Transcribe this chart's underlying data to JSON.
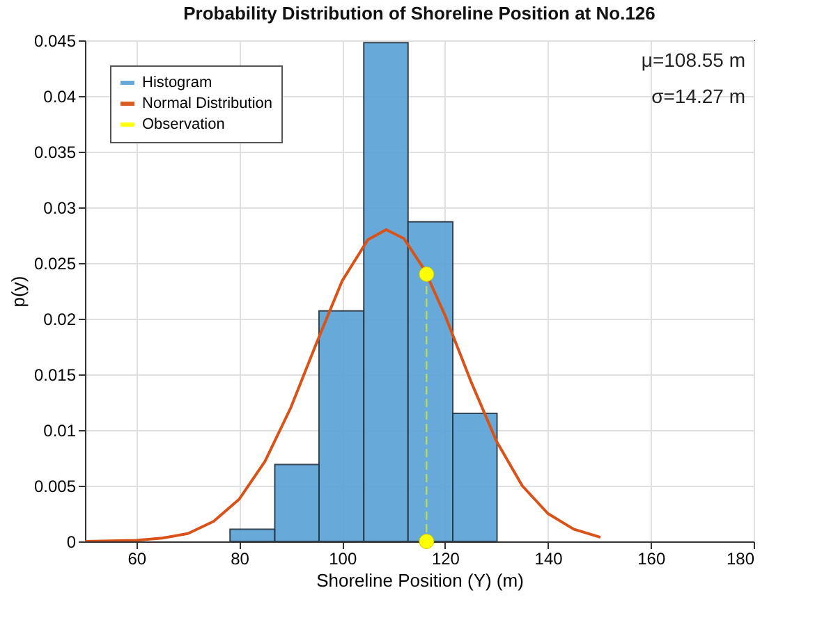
{
  "chart_data": {
    "type": "histogram",
    "title": "Probability Distribution of Shoreline Position at No.126",
    "xlabel": "Shoreline Position (Y) (m)",
    "ylabel": "p(y)",
    "series": [
      {
        "name": "Histogram",
        "type": "histogram",
        "color": "#5fa5d8",
        "bins": [
          78.2,
          86.9,
          95.5,
          104.2,
          112.8,
          121.5,
          130.1
        ],
        "values": [
          0.0011,
          0.0069,
          0.0207,
          0.0448,
          0.0287,
          0.0115
        ]
      },
      {
        "name": "Normal Distribution",
        "type": "line",
        "color": "#d95319",
        "x": [
          50,
          60,
          65,
          70,
          75,
          80,
          85,
          90,
          95,
          100,
          105,
          108.55,
          112,
          116,
          120,
          125,
          130,
          135,
          140,
          145,
          150
        ],
        "values": [
          0.0,
          0.0001,
          0.0003,
          0.0007,
          0.0018,
          0.0038,
          0.0072,
          0.012,
          0.0178,
          0.0234,
          0.0271,
          0.028,
          0.0272,
          0.0244,
          0.0203,
          0.0144,
          0.009,
          0.005,
          0.0025,
          0.0011,
          0.0004
        ]
      },
      {
        "name": "Observation",
        "type": "line",
        "color": "#ffff00",
        "line_style": "dashed",
        "marker": "circle",
        "x": [
          116.4,
          116.4
        ],
        "values": [
          0.024,
          0
        ]
      }
    ],
    "xlim": [
      50,
      180
    ],
    "xticks": [
      60,
      80,
      100,
      120,
      140,
      160,
      180
    ],
    "ylim": [
      0,
      0.045
    ],
    "yticks": [
      0,
      0.005,
      0.01,
      0.015,
      0.02,
      0.025,
      0.03,
      0.035,
      0.04,
      0.045
    ],
    "grid": true,
    "legend": "top left",
    "annotations": [
      "μ=108.55 m",
      "σ=14.27 m"
    ]
  }
}
